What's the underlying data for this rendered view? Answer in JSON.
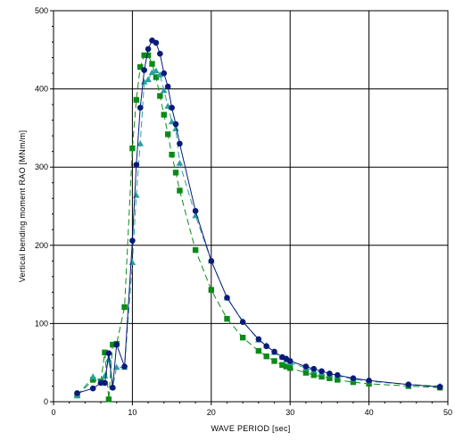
{
  "chart_data": {
    "type": "scatter",
    "xlabel": "WAVE PERIOD  [sec]",
    "ylabel": "Vertical bending moment RAO  [MNm/m]",
    "xlim": [
      0,
      50
    ],
    "ylim": [
      0,
      500
    ],
    "x_ticks": [
      "0",
      "10",
      "20",
      "30",
      "40",
      "50"
    ],
    "y_ticks": [
      "0",
      "100",
      "200",
      "300",
      "400",
      "500"
    ],
    "grid": true,
    "legend": "none",
    "series": [
      {
        "marker": "circle",
        "line": "solid",
        "color": "#0a1a7a",
        "points": [
          [
            3,
            11
          ],
          [
            5,
            17
          ],
          [
            6,
            24
          ],
          [
            6.5,
            24
          ],
          [
            7,
            62
          ],
          [
            7.5,
            18
          ],
          [
            8,
            73
          ],
          [
            9,
            45
          ],
          [
            10,
            206
          ],
          [
            10.5,
            303
          ],
          [
            11,
            376
          ],
          [
            11.5,
            424
          ],
          [
            12,
            451
          ],
          [
            12.5,
            462
          ],
          [
            13,
            459
          ],
          [
            13.5,
            445
          ],
          [
            14,
            420
          ],
          [
            14.5,
            403
          ],
          [
            15,
            376
          ],
          [
            15.5,
            355
          ],
          [
            16,
            330
          ],
          [
            18,
            244
          ],
          [
            20,
            180
          ],
          [
            22,
            133
          ],
          [
            24,
            102
          ],
          [
            26,
            80
          ],
          [
            27,
            71
          ],
          [
            28,
            64
          ],
          [
            29,
            57
          ],
          [
            29.5,
            55
          ],
          [
            30,
            52
          ],
          [
            32,
            45
          ],
          [
            33,
            42
          ],
          [
            34,
            39
          ],
          [
            35,
            36
          ],
          [
            36,
            34
          ],
          [
            38,
            30
          ],
          [
            40,
            27
          ],
          [
            45,
            22
          ],
          [
            49,
            19
          ]
        ]
      },
      {
        "marker": "triangle",
        "line": "dashed",
        "color": "#2aa0a0",
        "points": [
          [
            3,
            8
          ],
          [
            5,
            32
          ],
          [
            6,
            26
          ],
          [
            6.5,
            33
          ],
          [
            7,
            54
          ],
          [
            7.5,
            19
          ],
          [
            8,
            44
          ],
          [
            9,
            44
          ],
          [
            10,
            178
          ],
          [
            10.5,
            264
          ],
          [
            11,
            330
          ],
          [
            11.5,
            409
          ],
          [
            12,
            412
          ],
          [
            12.5,
            421
          ],
          [
            13,
            423
          ],
          [
            13.5,
            418
          ],
          [
            14,
            398
          ],
          [
            14.5,
            378
          ],
          [
            15,
            358
          ],
          [
            15.5,
            349
          ],
          [
            16,
            305
          ],
          [
            18,
            238
          ],
          [
            20,
            180
          ],
          [
            22,
            133
          ],
          [
            24,
            103
          ],
          [
            26,
            79
          ],
          [
            27,
            72
          ],
          [
            28,
            63
          ],
          [
            29,
            57
          ],
          [
            29.5,
            53
          ],
          [
            30,
            50
          ],
          [
            32,
            43
          ],
          [
            33,
            40
          ],
          [
            34,
            37
          ],
          [
            35,
            35
          ],
          [
            36,
            33
          ],
          [
            38,
            29
          ],
          [
            40,
            26
          ],
          [
            45,
            22
          ],
          [
            49,
            20
          ]
        ]
      },
      {
        "marker": "square",
        "line": "dashed",
        "color": "#0c8a18",
        "points": [
          [
            3,
            8
          ],
          [
            5,
            28
          ],
          [
            6,
            26
          ],
          [
            6.5,
            63
          ],
          [
            7,
            3
          ],
          [
            7.5,
            73
          ],
          [
            8,
            74
          ],
          [
            9,
            121
          ],
          [
            10,
            324
          ],
          [
            10.5,
            386
          ],
          [
            11,
            428
          ],
          [
            11.5,
            443
          ],
          [
            12,
            443
          ],
          [
            12.5,
            432
          ],
          [
            13,
            415
          ],
          [
            13.5,
            391
          ],
          [
            14,
            367
          ],
          [
            14.5,
            342
          ],
          [
            15,
            316
          ],
          [
            15.5,
            293
          ],
          [
            16,
            270
          ],
          [
            18,
            194
          ],
          [
            20,
            143
          ],
          [
            22,
            106
          ],
          [
            24,
            82
          ],
          [
            26,
            65
          ],
          [
            27,
            58
          ],
          [
            28,
            52
          ],
          [
            29,
            47
          ],
          [
            29.5,
            45
          ],
          [
            30,
            43
          ],
          [
            32,
            37
          ],
          [
            33,
            34
          ],
          [
            34,
            32
          ],
          [
            35,
            30
          ],
          [
            36,
            28
          ],
          [
            38,
            25
          ],
          [
            40,
            23
          ],
          [
            45,
            20
          ],
          [
            49,
            18
          ]
        ]
      }
    ]
  }
}
